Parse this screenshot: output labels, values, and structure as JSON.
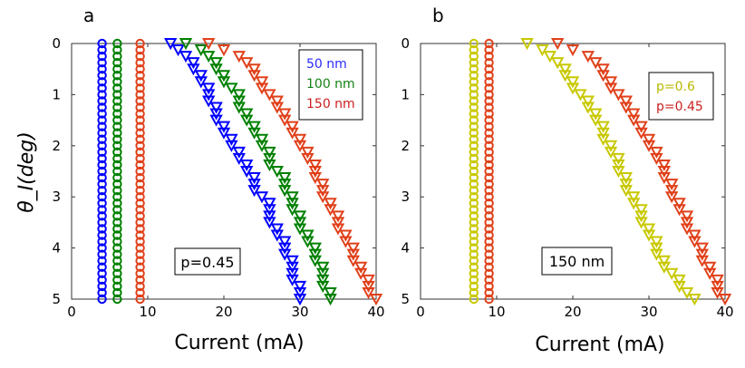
{
  "chart_data": [
    {
      "type": "scatter",
      "panel_label": "a",
      "xlabel": "Current (mA)",
      "ylabel": "θ_I(deg)",
      "xlim": [
        0,
        40
      ],
      "ylim": [
        0,
        5
      ],
      "y_reversed": true,
      "x_ticks": [
        "0",
        "10",
        "20",
        "30",
        "40"
      ],
      "y_ticks": [
        "0",
        "1",
        "2",
        "3",
        "4",
        "5"
      ],
      "annotation": "p=0.45",
      "legend": {
        "placement": "top-right",
        "entries": [
          {
            "label": "50 nm",
            "color": "#2a2aff"
          },
          {
            "label": "100 nm",
            "color": "#148214"
          },
          {
            "label": "150 nm",
            "color": "#cc1f1f"
          }
        ]
      },
      "y": [
        0,
        0.125,
        0.25,
        0.375,
        0.5,
        0.625,
        0.75,
        0.875,
        1,
        1.125,
        1.25,
        1.375,
        1.5,
        1.625,
        1.75,
        1.875,
        2,
        2.125,
        2.25,
        2.375,
        2.5,
        2.625,
        2.75,
        2.875,
        3,
        3.125,
        3.25,
        3.375,
        3.5,
        3.625,
        3.75,
        3.875,
        4,
        4.125,
        4.25,
        4.375,
        4.5,
        4.625,
        4.75,
        4.875,
        5
      ],
      "series": [
        {
          "marker": "circle",
          "color": "#0000ff",
          "x_constant": 4
        },
        {
          "marker": "circle",
          "color": "#008000",
          "x_constant": 6
        },
        {
          "marker": "circle",
          "color": "#e0401a",
          "x_constant": 9
        },
        {
          "marker": "triangle-down",
          "color": "#0000ff",
          "x": [
            13,
            14,
            15,
            16,
            16,
            17,
            17,
            18,
            18,
            18,
            19,
            19,
            19,
            20,
            20,
            21,
            21,
            22,
            22,
            23,
            23,
            24,
            24,
            24,
            25,
            26,
            26,
            26,
            26,
            27,
            27,
            28,
            28,
            28,
            29,
            29,
            29,
            29,
            30,
            30,
            30
          ]
        },
        {
          "marker": "triangle-down",
          "color": "#008000",
          "x": [
            15,
            17,
            18,
            19,
            19,
            20,
            20,
            21,
            22,
            22,
            22,
            23,
            23,
            24,
            24,
            25,
            25,
            26,
            26,
            26,
            27,
            28,
            28,
            28,
            29,
            29,
            29,
            30,
            30,
            30,
            31,
            31,
            32,
            32,
            32,
            33,
            33,
            33,
            33,
            34,
            34
          ]
        },
        {
          "marker": "triangle-down",
          "color": "#e0401a",
          "x": [
            18,
            20,
            22,
            23,
            24,
            24,
            25,
            25,
            26,
            27,
            27,
            28,
            28,
            29,
            29,
            30,
            30,
            31,
            31,
            32,
            32,
            32,
            33,
            33,
            33,
            34,
            34,
            35,
            35,
            35,
            36,
            36,
            37,
            37,
            37,
            38,
            38,
            39,
            39,
            39,
            40
          ]
        }
      ]
    },
    {
      "type": "scatter",
      "panel_label": "b",
      "xlabel": "Current (mA)",
      "xlim": [
        0,
        40
      ],
      "ylim": [
        0,
        5
      ],
      "y_reversed": true,
      "x_ticks": [
        "0",
        "10",
        "20",
        "30",
        "40"
      ],
      "y_ticks": [
        "0",
        "1",
        "2",
        "3",
        "4",
        "5"
      ],
      "annotation": "150 nm",
      "legend": {
        "placement": "top-right",
        "entries": [
          {
            "label": "p=0.6",
            "color": "#b8b800"
          },
          {
            "label": "p=0.45",
            "color": "#cc1f1f"
          }
        ]
      },
      "y": [
        0,
        0.125,
        0.25,
        0.375,
        0.5,
        0.625,
        0.75,
        0.875,
        1,
        1.125,
        1.25,
        1.375,
        1.5,
        1.625,
        1.75,
        1.875,
        2,
        2.125,
        2.25,
        2.375,
        2.5,
        2.625,
        2.75,
        2.875,
        3,
        3.125,
        3.25,
        3.375,
        3.5,
        3.625,
        3.75,
        3.875,
        4,
        4.125,
        4.25,
        4.375,
        4.5,
        4.625,
        4.75,
        4.875,
        5
      ],
      "series": [
        {
          "marker": "circle",
          "color": "#c8c800",
          "x_constant": 7
        },
        {
          "marker": "circle",
          "color": "#e0401a",
          "x_constant": 9
        },
        {
          "marker": "triangle-down",
          "color": "#c8c800",
          "x": [
            14,
            16,
            17,
            18,
            19,
            19,
            20,
            20,
            21,
            22,
            22,
            23,
            23,
            24,
            24,
            24,
            25,
            25,
            26,
            26,
            26,
            27,
            27,
            27,
            28,
            28,
            29,
            29,
            29,
            30,
            30,
            31,
            31,
            31,
            32,
            32,
            33,
            34,
            34,
            35,
            36
          ]
        },
        {
          "marker": "triangle-down",
          "color": "#e0401a",
          "x": [
            18,
            20,
            22,
            23,
            24,
            24,
            25,
            25,
            26,
            27,
            27,
            28,
            28,
            29,
            29,
            30,
            30,
            31,
            31,
            32,
            32,
            32,
            33,
            33,
            33,
            34,
            34,
            35,
            35,
            35,
            36,
            36,
            37,
            37,
            37,
            38,
            38,
            39,
            39,
            39,
            40
          ]
        }
      ]
    }
  ]
}
